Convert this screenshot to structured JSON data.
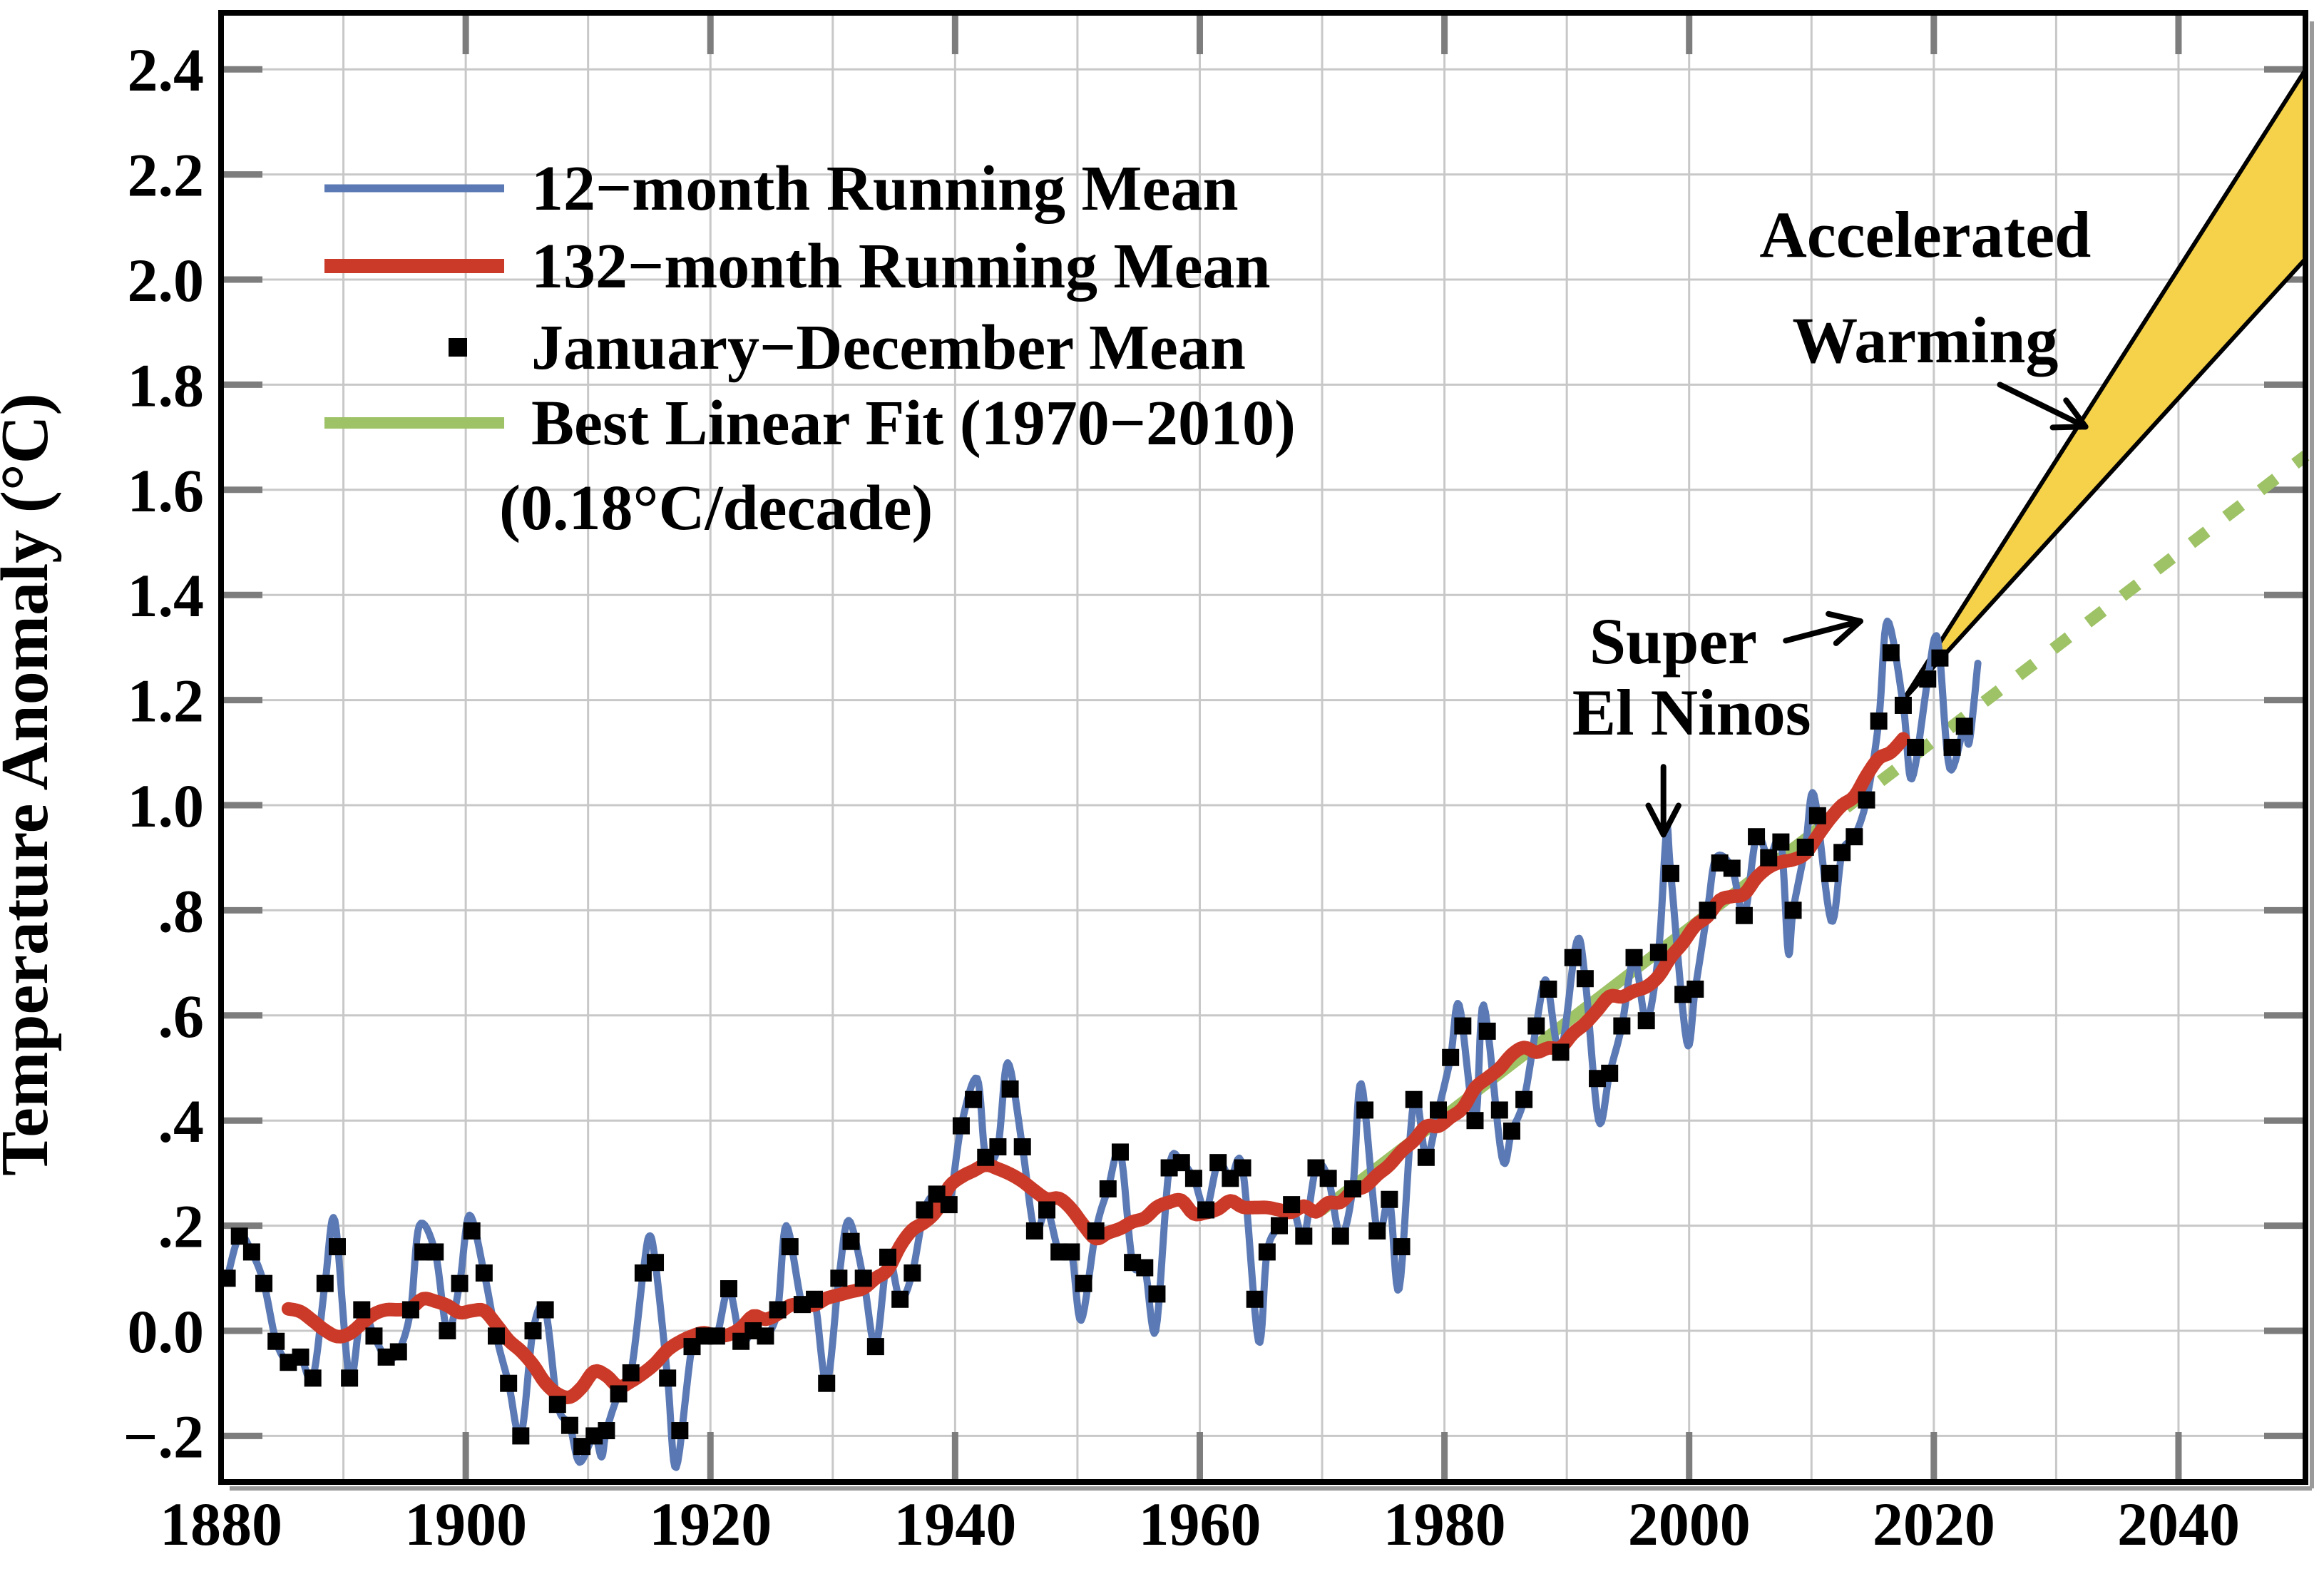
{
  "chart_data": {
    "type": "line",
    "title": "",
    "xlabel": "",
    "ylabel": "Temperature Anomaly (°C)",
    "xlim": [
      1880,
      2050.4
    ],
    "ylim": [
      -0.29,
      2.505
    ],
    "x_ticks": [
      1880,
      1900,
      1920,
      1940,
      1960,
      1980,
      2000,
      2020,
      2040
    ],
    "x_grid_step_years": 10,
    "y_ticks": [
      -0.2,
      0.0,
      0.2,
      0.4,
      0.6,
      0.8,
      1.0,
      1.2,
      1.4,
      1.6,
      1.8,
      2.0,
      2.2,
      2.4
    ],
    "y_tick_labels": [
      "−.2",
      "0.0",
      ".2",
      ".4",
      ".6",
      ".8",
      "1.0",
      "1.2",
      "1.4",
      "1.6",
      "1.8",
      "2.0",
      "2.2",
      "2.4"
    ],
    "grid": true,
    "legend_position": "top-left",
    "colors": {
      "running12": "#5b79b4",
      "running132": "#cb3a28",
      "annual_marker": "#000000",
      "linear_fit": "#9ec266",
      "wedge_fill": "#f6d24b",
      "wedge_edge": "#000000",
      "grid_line": "#c8c8c8",
      "tick": "#7d7d7d",
      "frame": "#000000"
    },
    "legend": {
      "items": [
        {
          "label": "12−month Running Mean",
          "swatch": "line",
          "color": "#5b79b4"
        },
        {
          "label": "132−month Running Mean",
          "swatch": "thick-line",
          "color": "#cb3a28"
        },
        {
          "label": "January−December Mean",
          "swatch": "square",
          "color": "#000000"
        },
        {
          "label": "Best Linear Fit (1970−2010)",
          "swatch": "line",
          "color": "#9ec266"
        }
      ],
      "note": "(0.18°C/decade)"
    },
    "series": [
      {
        "name": "January−December Mean",
        "type": "scatter",
        "marker": "square",
        "color": "#000000",
        "start_year": 1880,
        "values": [
          0.1,
          0.18,
          0.15,
          0.09,
          -0.02,
          -0.06,
          -0.05,
          -0.09,
          0.09,
          0.16,
          -0.09,
          0.04,
          -0.01,
          -0.05,
          -0.04,
          0.04,
          0.15,
          0.15,
          0.0,
          0.09,
          0.19,
          0.11,
          -0.01,
          -0.1,
          -0.2,
          0.0,
          0.04,
          -0.14,
          -0.18,
          -0.22,
          -0.2,
          -0.19,
          -0.12,
          -0.08,
          0.11,
          0.13,
          -0.09,
          -0.19,
          -0.03,
          -0.01,
          -0.01,
          0.08,
          -0.02,
          0.0,
          -0.01,
          0.04,
          0.16,
          0.05,
          0.06,
          -0.1,
          0.1,
          0.17,
          0.1,
          -0.03,
          0.14,
          0.06,
          0.11,
          0.23,
          0.26,
          0.24,
          0.39,
          0.44,
          0.33,
          0.35,
          0.46,
          0.35,
          0.19,
          0.23,
          0.15,
          0.15,
          0.09,
          0.19,
          0.27,
          0.34,
          0.13,
          0.12,
          0.07,
          0.31,
          0.32,
          0.29,
          0.23,
          0.32,
          0.29,
          0.31,
          0.06,
          0.15,
          0.2,
          0.24,
          0.18,
          0.31,
          0.29,
          0.18,
          0.27,
          0.42,
          0.19,
          0.25,
          0.16,
          0.44,
          0.33,
          0.42,
          0.52,
          0.58,
          0.4,
          0.57,
          0.42,
          0.38,
          0.44,
          0.58,
          0.65,
          0.53,
          0.71,
          0.67,
          0.48,
          0.49,
          0.58,
          0.71,
          0.59,
          0.72,
          0.87,
          0.64,
          0.65,
          0.8,
          0.89,
          0.88,
          0.79,
          0.94,
          0.9,
          0.93,
          0.8,
          0.92,
          0.98,
          0.87,
          0.91,
          0.94,
          1.01,
          1.16,
          1.29,
          1.19,
          1.11,
          1.24,
          1.28,
          1.11,
          1.15
        ]
      },
      {
        "name": "12−month Running Mean",
        "type": "line",
        "color": "#5b79b4",
        "derived_from": "annual means plus monthly extremes, plotted at mid-year",
        "extra_knots": [
          [
            1889.3,
            0.21
          ],
          [
            1896.2,
            0.2
          ],
          [
            1900.3,
            0.22
          ],
          [
            1909.3,
            -0.25
          ],
          [
            1911.1,
            -0.24
          ],
          [
            1915.0,
            0.18
          ],
          [
            1917.2,
            -0.26
          ],
          [
            1926.2,
            0.2
          ],
          [
            1931.3,
            0.21
          ],
          [
            1941.8,
            0.48
          ],
          [
            1944.3,
            0.51
          ],
          [
            1950.3,
            0.02
          ],
          [
            1956.4,
            0.0
          ],
          [
            1964.8,
            -0.02
          ],
          [
            1973.2,
            0.47
          ],
          [
            1976.3,
            0.08
          ],
          [
            1981.2,
            0.62
          ],
          [
            1983.2,
            0.62
          ],
          [
            1984.7,
            0.33
          ],
          [
            1988.1,
            0.66
          ],
          [
            1990.8,
            0.74
          ],
          [
            1992.6,
            0.4
          ],
          [
            1998.15,
            0.95
          ],
          [
            1999.8,
            0.55
          ],
          [
            2002.2,
            0.9
          ],
          [
            2008.1,
            0.72
          ],
          [
            2010.2,
            1.02
          ],
          [
            2011.6,
            0.78
          ],
          [
            2016.2,
            1.35
          ],
          [
            2018.2,
            1.05
          ],
          [
            2020.1,
            1.32
          ],
          [
            2021.3,
            1.07
          ],
          [
            2022.9,
            1.12
          ],
          [
            2023.6,
            1.27
          ]
        ]
      },
      {
        "name": "132−month Running Mean",
        "type": "line",
        "color": "#cb3a28",
        "derived_from": "11-year centered running mean of the January−December means"
      },
      {
        "name": "Best Linear Fit (1970−2010)",
        "type": "line",
        "color": "#9ec266",
        "rate_label": "(0.18°C/decade)",
        "x": [
          1970,
          2010
        ],
        "y": [
          0.23,
          0.945
        ],
        "dashed_extension": {
          "x": [
            2010,
            2050.4
          ],
          "y": [
            0.945,
            1.665
          ]
        }
      }
    ],
    "wedge": {
      "label": "Accelerated Warming",
      "fill": "#f6d24b",
      "apex": [
        2017.5,
        1.2
      ],
      "upper_end": [
        2050.4,
        2.4
      ],
      "lower_end": [
        2050.4,
        2.04
      ]
    },
    "annotations": [
      {
        "id": "accelerated-warming",
        "lines": [
          "Accelerated",
          "Warming"
        ],
        "line_centers": [
          [
            2019.3,
            2.084
          ],
          [
            2019.3,
            1.883
          ]
        ],
        "arrow": {
          "from": [
            2025.4,
            1.8
          ],
          "to": [
            2032.4,
            1.72
          ]
        }
      },
      {
        "id": "super-el-ninos",
        "lines": [
          "Super",
          "El Ninos"
        ],
        "line_centers": [
          [
            1998.7,
            1.311
          ],
          [
            2000.2,
            1.175
          ]
        ],
        "arrow_right": {
          "from": [
            2007.9,
            1.313
          ],
          "to": [
            2014.0,
            1.35
          ]
        },
        "arrow_down": {
          "from": [
            1997.9,
            1.073
          ],
          "to": [
            1997.9,
            0.944
          ]
        }
      }
    ]
  }
}
